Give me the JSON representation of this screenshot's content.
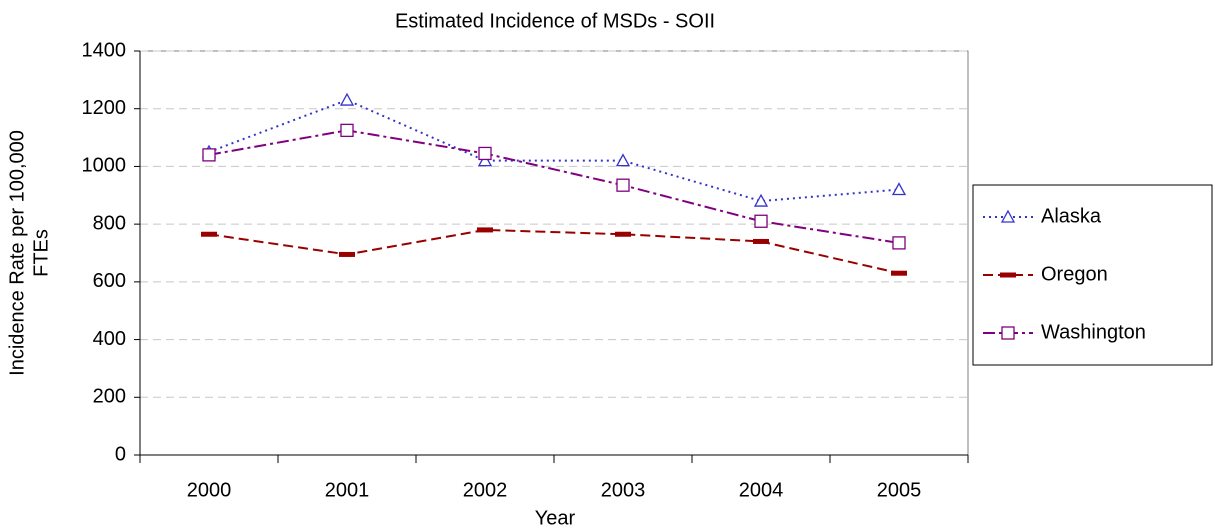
{
  "chart_data": {
    "type": "line",
    "title": "Estimated Incidence of MSDs - SOII",
    "x_label": "Year",
    "y_label": [
      "Incidence Rate per 100,000",
      "FTEs"
    ],
    "categories": [
      "2000",
      "2001",
      "2002",
      "2003",
      "2004",
      "2005"
    ],
    "series": [
      {
        "name": "Alaska",
        "color": "#3333cc",
        "line_style": "dotted",
        "marker": "triangle",
        "values": [
          1050,
          1230,
          1020,
          1020,
          880,
          920
        ]
      },
      {
        "name": "Oregon",
        "color": "#990000",
        "line_style": "dashed",
        "marker": "dash",
        "values": [
          765,
          695,
          780,
          765,
          740,
          630
        ]
      },
      {
        "name": "Washington",
        "color": "#800080",
        "line_style": "dashdot",
        "marker": "square",
        "values": [
          1040,
          1125,
          1045,
          935,
          810,
          735
        ]
      }
    ],
    "ylim": [
      0,
      1400
    ],
    "yticks": [
      0,
      200,
      400,
      600,
      800,
      1000,
      1200,
      1400
    ],
    "grid": true,
    "legend": "right"
  }
}
